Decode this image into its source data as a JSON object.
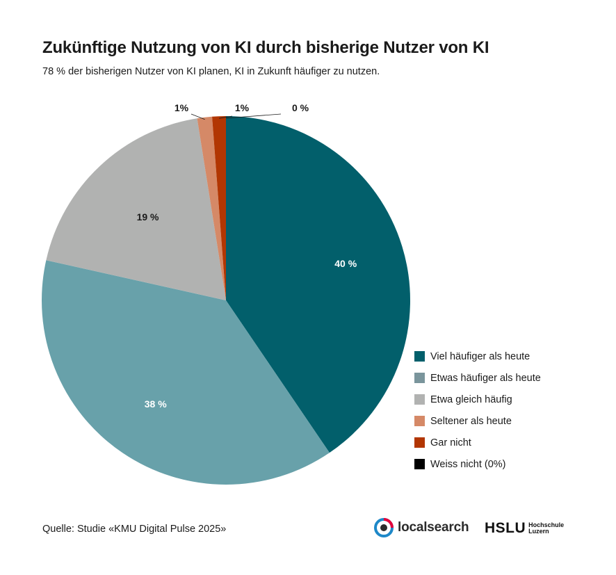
{
  "title": "Zukünftige Nutzung von KI durch bisherige Nutzer von KI",
  "subtitle": "78 % der bisherigen Nutzer von KI planen, KI in Zukunft häufiger zu nutzen.",
  "source": "Quelle: Studie «KMU Digital Pulse 2025»",
  "logos": {
    "localsearch": "localsearch",
    "hslu_word": "HSLU",
    "hslu_line1": "Hochschule",
    "hslu_line2": "Luzern"
  },
  "legend": {
    "items": [
      {
        "label": "Viel häufiger als heute",
        "color": "#025f6b"
      },
      {
        "label": "Etwas häufiger als heute",
        "color": "#7a959c"
      },
      {
        "label": "Etwa gleich häufig",
        "color": "#b1b2b1"
      },
      {
        "label": "Seltener als heute",
        "color": "#d58967"
      },
      {
        "label": "Gar nicht",
        "color": "#b23602"
      },
      {
        "label": "Weiss nicht (0%)",
        "color": "#000000"
      }
    ]
  },
  "chart_data": {
    "type": "pie",
    "title": "Zukünftige Nutzung von KI durch bisherige Nutzer von KI",
    "subtitle": "78 % der bisherigen Nutzer von KI planen, KI in Zukunft häufiger zu nutzen.",
    "slices": [
      {
        "name": "Viel häufiger als heute",
        "value": 40.5,
        "label": "40 %",
        "color": "#025f6b",
        "label_color": "#ffffff"
      },
      {
        "name": "Etwas häufiger als heute",
        "value": 38,
        "label": "38 %",
        "color": "#68a1aa",
        "label_color": "#ffffff"
      },
      {
        "name": "Etwa gleich häufig",
        "value": 19,
        "label": "19 %",
        "color": "#b1b2b1",
        "label_color": "#1a1a1a"
      },
      {
        "name": "Seltener als heute",
        "value": 1.3,
        "label": "1%",
        "color": "#d58967",
        "label_color": "#1a1a1a"
      },
      {
        "name": "Gar nicht",
        "value": 1.2,
        "label": "1%",
        "color": "#b23602",
        "label_color": "#1a1a1a"
      },
      {
        "name": "Weiss nicht",
        "value": 0,
        "label": "0 %",
        "color": "#000000",
        "label_color": "#1a1a1a"
      }
    ],
    "start_angle": "12 o'clock",
    "direction": "clockwise",
    "legend_position": "right-bottom"
  }
}
